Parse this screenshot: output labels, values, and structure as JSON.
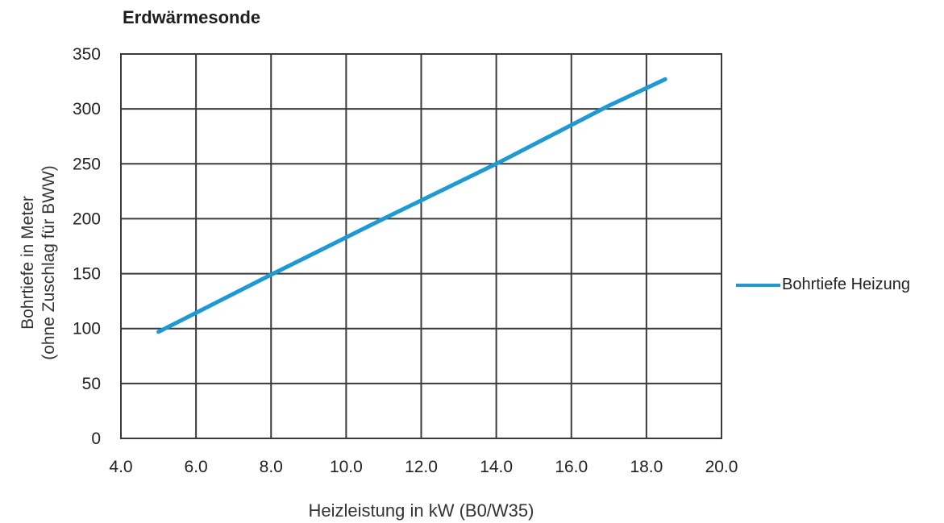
{
  "chart_data": {
    "type": "line",
    "title": "Erdwärmesonde",
    "xlabel": "Heizleistung in kW (B0/W35)",
    "ylabel_line1": "Bohrtiefe in Meter",
    "ylabel_line2": "(ohne Zuschlag für BWW)",
    "xlim": [
      4.0,
      20.0
    ],
    "ylim": [
      0,
      350
    ],
    "x_ticks": [
      "4.0",
      "6.0",
      "8.0",
      "10.0",
      "12.0",
      "14.0",
      "16.0",
      "18.0",
      "20.0"
    ],
    "y_ticks": [
      "0",
      "50",
      "100",
      "150",
      "200",
      "250",
      "300",
      "350"
    ],
    "grid": true,
    "legend_position": "right",
    "series": [
      {
        "name": "Bohrtiefe Heizung",
        "color": "#1a9ad6",
        "x": [
          5.0,
          8.0,
          11.0,
          14.0,
          17.0,
          18.5
        ],
        "y": [
          97,
          149,
          200,
          250,
          303,
          327
        ]
      }
    ]
  }
}
